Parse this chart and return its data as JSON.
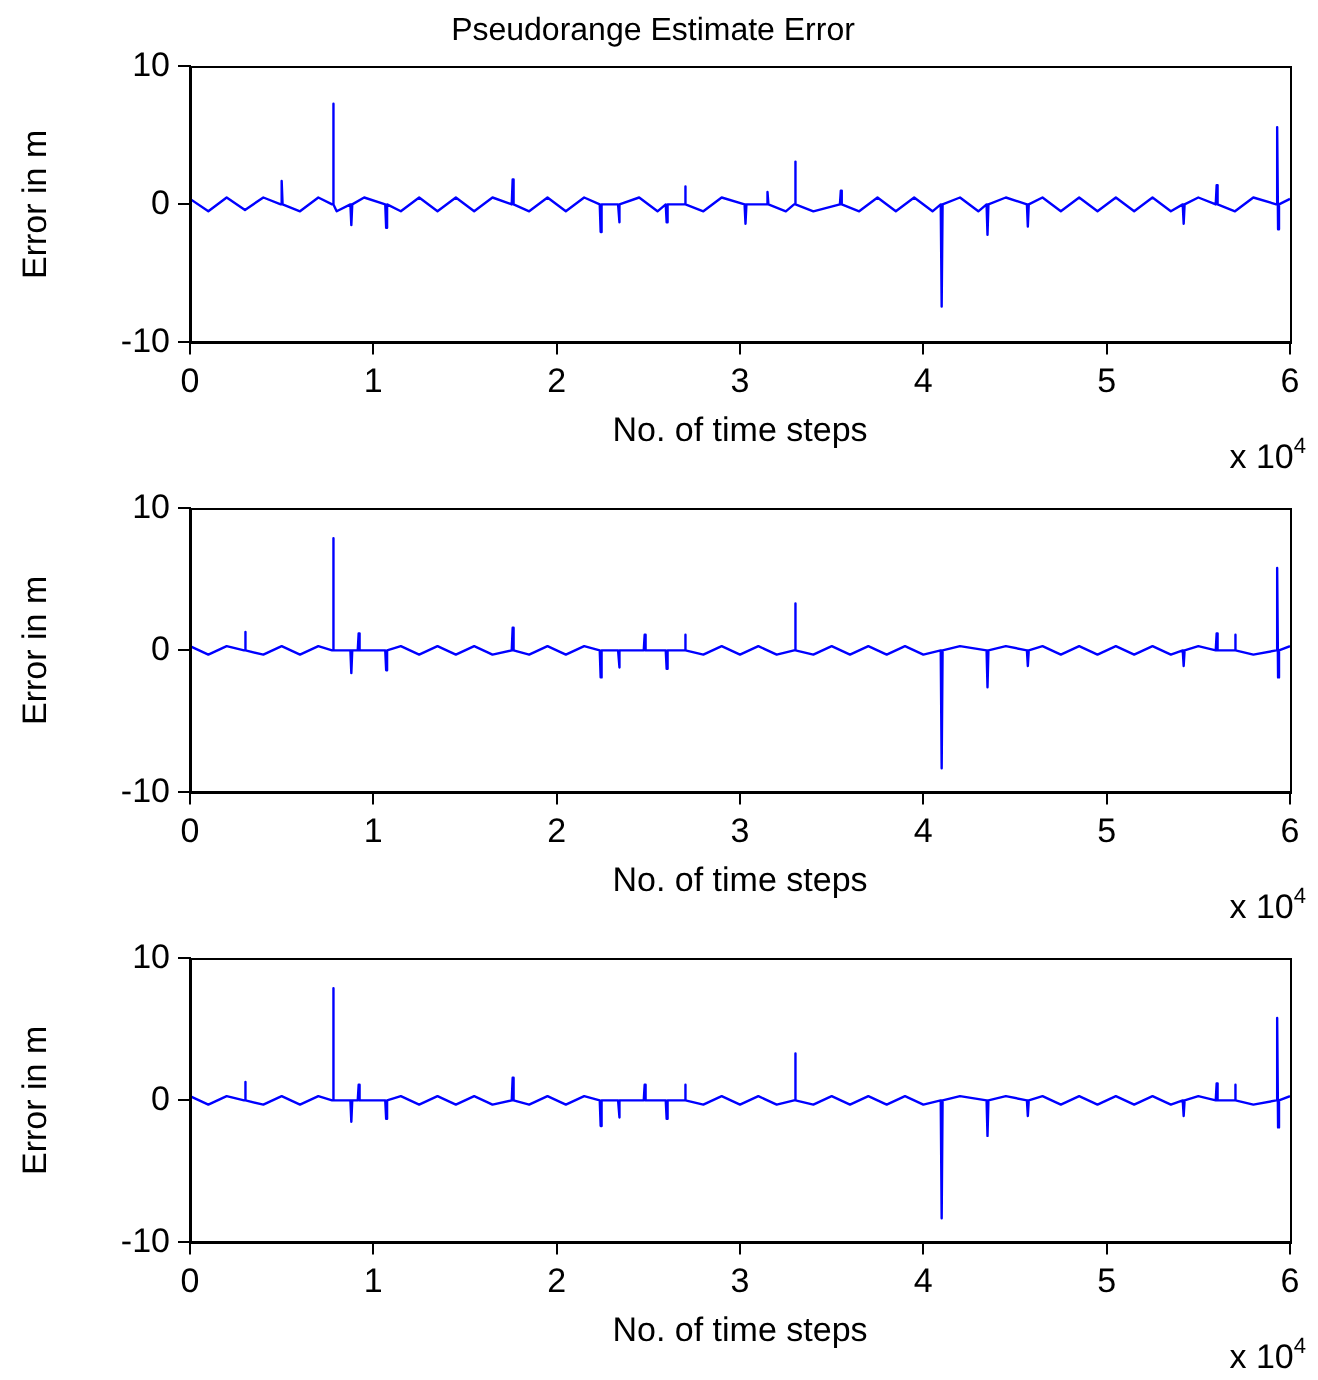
{
  "chart_data": [
    {
      "type": "line",
      "title": "Pseudorange Estimate Error",
      "xlabel": "No. of time steps",
      "ylabel": "Error in m",
      "annotations": [
        "x 10$^{4}$"
      ],
      "xlim": [
        0,
        6
      ],
      "ylim": [
        -10,
        10
      ],
      "yticks": [
        -10,
        0,
        10
      ],
      "xticks": [
        0,
        1,
        2,
        3,
        4,
        5,
        6
      ],
      "grid": false,
      "legend": false,
      "marker": "none",
      "line_style": "solid",
      "series": [
        {
          "color": "#0000ff",
          "x": [
            0,
            0.1,
            0.2,
            0.3,
            0.4,
            0.495,
            0.5,
            0.505,
            0.6,
            0.7,
            0.775,
            0.78,
            0.785,
            0.8,
            0.875,
            0.88,
            0.885,
            0.95,
            1.065,
            1.07,
            1.075,
            1.15,
            1.25,
            1.35,
            1.45,
            1.55,
            1.65,
            1.755,
            1.76,
            1.765,
            1.85,
            1.95,
            2.05,
            2.15,
            2.235,
            2.24,
            2.245,
            2.335,
            2.34,
            2.345,
            2.45,
            2.55,
            2.595,
            2.6,
            2.605,
            2.695,
            2.7,
            2.705,
            2.8,
            2.9,
            3.025,
            3.03,
            3.035,
            3.145,
            3.15,
            3.155,
            3.25,
            3.295,
            3.3,
            3.305,
            3.4,
            3.545,
            3.55,
            3.555,
            3.65,
            3.75,
            3.85,
            3.95,
            4.05,
            4.095,
            4.1,
            4.105,
            4.2,
            4.3,
            4.345,
            4.35,
            4.355,
            4.45,
            4.565,
            4.57,
            4.575,
            4.65,
            4.75,
            4.85,
            4.95,
            5.05,
            5.15,
            5.25,
            5.35,
            5.415,
            5.42,
            5.425,
            5.5,
            5.595,
            5.6,
            5.605,
            5.7,
            5.8,
            5.925,
            5.93,
            5.935,
            5.94,
            6
          ],
          "values": [
            0.4,
            -0.5,
            0.5,
            -0.4,
            0.5,
            0,
            1.7,
            0,
            -0.5,
            0.5,
            0,
            7.3,
            0,
            -0.5,
            0,
            -1.5,
            0,
            0.5,
            0,
            -1.7,
            0,
            -0.5,
            0.5,
            -0.5,
            0.5,
            -0.5,
            0.5,
            0,
            1.8,
            0,
            -0.5,
            0.5,
            -0.5,
            0.5,
            0,
            -2.0,
            0,
            0,
            -1.3,
            0,
            0.5,
            -0.5,
            0,
            -1.3,
            0,
            0,
            1.3,
            0,
            -0.5,
            0.5,
            0,
            -1.4,
            0,
            0,
            0.9,
            0,
            -0.5,
            0,
            3.1,
            0,
            -0.5,
            0,
            1.0,
            0,
            -0.5,
            0.5,
            -0.5,
            0.5,
            -0.5,
            0,
            -7.4,
            0,
            0.5,
            -0.5,
            0,
            -2.2,
            0,
            0.5,
            0,
            -1.6,
            0,
            0.5,
            -0.5,
            0.5,
            -0.5,
            0.5,
            -0.5,
            0.5,
            -0.5,
            0,
            -1.4,
            0,
            0.5,
            0,
            1.4,
            0,
            -0.5,
            0.5,
            0,
            5.6,
            -1.8,
            0,
            0.4
          ]
        }
      ]
    },
    {
      "type": "line",
      "xlabel": "No. of time steps",
      "ylabel": "Error in m",
      "annotations": [
        "x 10$^{4}$"
      ],
      "xlim": [
        0,
        6
      ],
      "ylim": [
        -10,
        10
      ],
      "yticks": [
        -10,
        0,
        10
      ],
      "xticks": [
        0,
        1,
        2,
        3,
        4,
        5,
        6
      ],
      "grid": false,
      "legend": false,
      "marker": "none",
      "line_style": "solid",
      "series": [
        {
          "color": "#0000ff",
          "x": [
            0,
            0.1,
            0.2,
            0.295,
            0.3,
            0.305,
            0.4,
            0.5,
            0.6,
            0.7,
            0.775,
            0.78,
            0.785,
            0.875,
            0.88,
            0.885,
            0.915,
            0.92,
            0.925,
            1.065,
            1.07,
            1.075,
            1.15,
            1.25,
            1.35,
            1.45,
            1.55,
            1.65,
            1.755,
            1.76,
            1.765,
            1.85,
            1.95,
            2.05,
            2.15,
            2.235,
            2.24,
            2.245,
            2.335,
            2.34,
            2.345,
            2.475,
            2.48,
            2.485,
            2.595,
            2.6,
            2.605,
            2.695,
            2.7,
            2.705,
            2.8,
            2.9,
            3,
            3.1,
            3.2,
            3.295,
            3.3,
            3.305,
            3.4,
            3.5,
            3.6,
            3.7,
            3.8,
            3.9,
            4,
            4.095,
            4.1,
            4.105,
            4.2,
            4.345,
            4.35,
            4.355,
            4.45,
            4.565,
            4.57,
            4.575,
            4.65,
            4.75,
            4.85,
            4.95,
            5.05,
            5.15,
            5.25,
            5.35,
            5.415,
            5.42,
            5.425,
            5.5,
            5.595,
            5.6,
            5.605,
            5.695,
            5.7,
            5.705,
            5.8,
            5.925,
            5.93,
            5.935,
            5.94,
            6
          ],
          "values": [
            0.3,
            -0.3,
            0.3,
            0,
            1.3,
            0,
            -0.3,
            0.3,
            -0.3,
            0.3,
            0,
            7.9,
            0,
            0,
            -1.6,
            0,
            0,
            1.2,
            0,
            0,
            -1.4,
            0,
            0.3,
            -0.3,
            0.3,
            -0.3,
            0.3,
            -0.3,
            0,
            1.6,
            0,
            -0.3,
            0.3,
            -0.3,
            0.3,
            0,
            -1.9,
            0,
            0,
            -1.2,
            0,
            0,
            1.1,
            0,
            0,
            -1.3,
            0,
            0,
            1.1,
            0,
            -0.3,
            0.3,
            -0.3,
            0.3,
            -0.3,
            0,
            3.3,
            0,
            -0.3,
            0.3,
            -0.3,
            0.3,
            -0.3,
            0.3,
            -0.3,
            0,
            -8.3,
            0,
            0.3,
            0,
            -2.6,
            0,
            0.3,
            0,
            -1.1,
            0,
            0.3,
            -0.3,
            0.3,
            -0.3,
            0.3,
            -0.3,
            0.3,
            -0.3,
            0,
            -1.1,
            0,
            0.3,
            0,
            1.2,
            0,
            0,
            1.1,
            0,
            -0.3,
            0,
            5.8,
            -1.9,
            0,
            0.3
          ]
        }
      ]
    },
    {
      "type": "line",
      "xlabel": "No. of time steps",
      "ylabel": "Error in m",
      "annotations": [
        "x 10$^{4}$"
      ],
      "xlim": [
        0,
        6
      ],
      "ylim": [
        -10,
        10
      ],
      "yticks": [
        -10,
        0,
        10
      ],
      "xticks": [
        0,
        1,
        2,
        3,
        4,
        5,
        6
      ],
      "grid": false,
      "legend": false,
      "marker": "none",
      "line_style": "solid",
      "series": [
        {
          "color": "#0000ff",
          "x": [
            0,
            0.1,
            0.2,
            0.295,
            0.3,
            0.305,
            0.4,
            0.5,
            0.6,
            0.7,
            0.775,
            0.78,
            0.785,
            0.875,
            0.88,
            0.885,
            0.915,
            0.92,
            0.925,
            1.065,
            1.07,
            1.075,
            1.15,
            1.25,
            1.35,
            1.45,
            1.55,
            1.65,
            1.755,
            1.76,
            1.765,
            1.85,
            1.95,
            2.05,
            2.15,
            2.235,
            2.24,
            2.245,
            2.335,
            2.34,
            2.345,
            2.475,
            2.48,
            2.485,
            2.595,
            2.6,
            2.605,
            2.695,
            2.7,
            2.705,
            2.8,
            2.9,
            3,
            3.1,
            3.2,
            3.295,
            3.3,
            3.305,
            3.4,
            3.5,
            3.6,
            3.7,
            3.8,
            3.9,
            4,
            4.095,
            4.1,
            4.105,
            4.2,
            4.345,
            4.35,
            4.355,
            4.45,
            4.565,
            4.57,
            4.575,
            4.65,
            4.75,
            4.85,
            4.95,
            5.05,
            5.15,
            5.25,
            5.35,
            5.415,
            5.42,
            5.425,
            5.5,
            5.595,
            5.6,
            5.605,
            5.695,
            5.7,
            5.705,
            5.8,
            5.925,
            5.93,
            5.935,
            5.94,
            6
          ],
          "values": [
            0.3,
            -0.3,
            0.3,
            0,
            1.3,
            0,
            -0.3,
            0.3,
            -0.3,
            0.3,
            0,
            7.9,
            0,
            0,
            -1.5,
            0,
            0,
            1.1,
            0,
            0,
            -1.3,
            0,
            0.3,
            -0.3,
            0.3,
            -0.3,
            0.3,
            -0.3,
            0,
            1.6,
            0,
            -0.3,
            0.3,
            -0.3,
            0.3,
            0,
            -1.8,
            0,
            0,
            -1.2,
            0,
            0,
            1.1,
            0,
            0,
            -1.3,
            0,
            0,
            1.1,
            0,
            -0.3,
            0.3,
            -0.3,
            0.3,
            -0.3,
            0,
            3.3,
            0,
            -0.3,
            0.3,
            -0.3,
            0.3,
            -0.3,
            0.3,
            -0.3,
            0,
            -8.3,
            0,
            0.3,
            0,
            -2.5,
            0,
            0.3,
            0,
            -1.1,
            0,
            0.3,
            -0.3,
            0.3,
            -0.3,
            0.3,
            -0.3,
            0.3,
            -0.3,
            0,
            -1.1,
            0,
            0.3,
            0,
            1.2,
            0,
            0,
            1.1,
            0,
            -0.3,
            0,
            5.8,
            -1.9,
            0,
            0.3
          ]
        }
      ]
    }
  ]
}
